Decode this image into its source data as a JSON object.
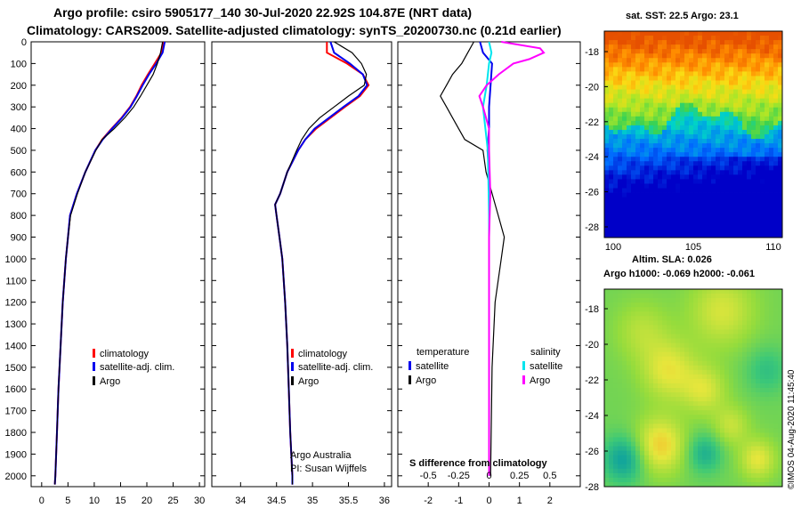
{
  "header": {
    "line1": "Argo profile: csiro 5905177_140 30-Jul-2020 22.92S 104.87E (NRT data)",
    "line2": "Climatology: CARS2009. Satellite-adjusted climatology: synTS_20200730.nc (0.21d earlier)"
  },
  "depth_axis": {
    "ticks": [
      0,
      100,
      200,
      300,
      400,
      500,
      600,
      700,
      800,
      900,
      1000,
      1100,
      1200,
      1300,
      1400,
      1500,
      1600,
      1700,
      1800,
      1900,
      2000
    ],
    "max": 2050
  },
  "credits": {
    "line1": "Argo Australia",
    "line2": "PI: Susan Wijffels"
  },
  "watermark": "©IMOS 04-Aug-2020 11:45:40",
  "legend": {
    "climatology": "climatology",
    "satellite_adj": "satellite-adj. clim.",
    "argo": "Argo",
    "temperature": "temperature",
    "salinity": "salinity",
    "satellite": "satellite"
  },
  "colors": {
    "climatology": "#ff0000",
    "satellite_adj": "#0000ee",
    "argo": "#000000",
    "salinity_sat": "#00e5ee",
    "salinity_argo": "#ff00ff"
  },
  "chart_data": [
    {
      "type": "line",
      "name": "temperature-profile",
      "xlabel": "",
      "ylabel": "depth",
      "xlim": [
        -2,
        31
      ],
      "ylim": [
        2050,
        0
      ],
      "xticks": [
        0,
        5,
        10,
        15,
        20,
        25,
        30
      ],
      "series": [
        {
          "name": "climatology",
          "depth": [
            0,
            50,
            100,
            150,
            200,
            250,
            300,
            350,
            400,
            450,
            500,
            600,
            700,
            800,
            900,
            1000,
            1200,
            1400,
            1600,
            1800,
            2000,
            2040
          ],
          "values": [
            23.1,
            22.8,
            21.5,
            20.2,
            19.0,
            18.0,
            16.8,
            15.2,
            13.3,
            11.5,
            10.2,
            8.3,
            6.7,
            5.4,
            5.0,
            4.6,
            4.0,
            3.6,
            3.2,
            2.9,
            2.6,
            2.5
          ]
        },
        {
          "name": "satellite-adj. clim.",
          "depth": [
            0,
            50,
            100,
            150,
            200,
            250,
            300,
            350,
            400,
            450,
            500,
            600,
            700,
            800,
            900,
            1000,
            1200,
            1400,
            1600,
            1800,
            2000,
            2040
          ],
          "values": [
            23.4,
            23.0,
            21.8,
            20.4,
            19.2,
            18.1,
            16.9,
            15.3,
            13.4,
            11.6,
            10.2,
            8.3,
            6.7,
            5.4,
            5.0,
            4.6,
            4.0,
            3.6,
            3.2,
            2.9,
            2.6,
            2.5
          ]
        },
        {
          "name": "Argo",
          "depth": [
            0,
            50,
            100,
            150,
            200,
            250,
            300,
            350,
            400,
            450,
            500,
            600,
            700,
            800,
            900,
            1000,
            1200,
            1400,
            1600,
            1800,
            2000,
            2040
          ],
          "values": [
            23.0,
            22.6,
            22.0,
            21.2,
            20.0,
            18.8,
            17.5,
            15.8,
            13.8,
            11.5,
            10.3,
            8.3,
            6.8,
            5.5,
            5.0,
            4.6,
            4.0,
            3.6,
            3.2,
            2.9,
            2.6,
            2.5
          ]
        }
      ]
    },
    {
      "type": "line",
      "name": "salinity-profile",
      "xlabel": "",
      "ylabel": "depth",
      "xlim": [
        33.6,
        36.1
      ],
      "ylim": [
        2050,
        0
      ],
      "xticks": [
        34,
        34.5,
        35,
        35.5,
        36
      ],
      "series": [
        {
          "name": "climatology",
          "depth": [
            0,
            50,
            100,
            150,
            200,
            250,
            300,
            350,
            400,
            450,
            500,
            600,
            700,
            750,
            800,
            900,
            1000,
            1200,
            1400,
            1600,
            1800,
            2000,
            2040
          ],
          "values": [
            35.2,
            35.2,
            35.48,
            35.7,
            35.78,
            35.66,
            35.45,
            35.25,
            35.05,
            34.9,
            34.8,
            34.65,
            34.55,
            34.48,
            34.5,
            34.54,
            34.58,
            34.62,
            34.65,
            34.67,
            34.69,
            34.72,
            34.72
          ]
        },
        {
          "name": "satellite-adj. clim.",
          "depth": [
            0,
            50,
            100,
            150,
            200,
            250,
            300,
            350,
            400,
            450,
            500,
            600,
            700,
            750,
            800,
            900,
            1000,
            1200,
            1400,
            1600,
            1800,
            2000,
            2040
          ],
          "values": [
            35.25,
            35.3,
            35.52,
            35.7,
            35.76,
            35.64,
            35.43,
            35.23,
            35.03,
            34.9,
            34.8,
            34.65,
            34.55,
            34.48,
            34.5,
            34.54,
            34.58,
            34.62,
            34.65,
            34.67,
            34.69,
            34.72,
            34.72
          ]
        },
        {
          "name": "Argo",
          "depth": [
            0,
            50,
            100,
            150,
            200,
            250,
            300,
            350,
            400,
            450,
            500,
            600,
            700,
            750,
            800,
            900,
            1000,
            1200,
            1400,
            1600,
            1800,
            2000,
            2040
          ],
          "values": [
            35.3,
            35.55,
            35.68,
            35.75,
            35.72,
            35.5,
            35.3,
            35.1,
            34.95,
            34.85,
            34.78,
            34.65,
            34.55,
            34.48,
            34.5,
            34.54,
            34.58,
            34.62,
            34.65,
            34.67,
            34.69,
            34.72,
            34.72
          ]
        }
      ]
    },
    {
      "type": "line",
      "name": "difference-from-climatology",
      "xlabel": "S difference from climatology",
      "ylim": [
        2050,
        0
      ],
      "xlim_temperature": [
        -3,
        3
      ],
      "top_ticks": [
        -2,
        -1,
        0,
        1,
        2
      ],
      "bottom_ticks": [
        "-0.5",
        "-0.25",
        "0",
        "0.25",
        "0.5"
      ],
      "series": [
        {
          "name": "temperature satellite",
          "depth": [
            0,
            50,
            100,
            200,
            300,
            400,
            500,
            600,
            800,
            1000,
            1500,
            2000
          ],
          "values": [
            -0.3,
            -0.2,
            0.1,
            0.05,
            0,
            0,
            -0.05,
            0,
            0,
            0,
            0,
            0
          ]
        },
        {
          "name": "temperature Argo",
          "depth": [
            0,
            50,
            100,
            150,
            200,
            250,
            300,
            350,
            400,
            450,
            500,
            600,
            800,
            900,
            1000,
            1200,
            1500,
            2000
          ],
          "values": [
            -0.5,
            -0.7,
            -0.9,
            -1.2,
            -1.4,
            -1.6,
            -1.4,
            -1.2,
            -1.0,
            -0.8,
            -0.2,
            -0.1,
            0.3,
            0.5,
            0.4,
            0.2,
            0.1,
            0.05
          ]
        },
        {
          "name": "salinity satellite",
          "depth": [
            0,
            50,
            100,
            200,
            300,
            400,
            500,
            800,
            1000,
            1500,
            2000
          ],
          "values": [
            0.0,
            0.02,
            0.0,
            -0.02,
            -0.05,
            -0.03,
            -0.01,
            0,
            0,
            0,
            0
          ]
        },
        {
          "name": "salinity Argo",
          "depth": [
            0,
            30,
            50,
            80,
            100,
            150,
            200,
            250,
            300,
            400,
            500,
            700,
            900,
            1000,
            1200,
            1500,
            2000
          ],
          "values": [
            0.1,
            0.42,
            0.45,
            0.33,
            0.2,
            0.08,
            -0.02,
            -0.08,
            -0.05,
            0,
            0,
            0.01,
            0.0,
            0.0,
            0.0,
            0.0,
            0.0
          ]
        }
      ]
    },
    {
      "type": "heatmap",
      "name": "sst-map",
      "title": "sat. SST: 22.5 Argo: 23.1",
      "x_ticks": [
        "100",
        "105",
        "110"
      ],
      "y_ticks": [
        "-18",
        "-20",
        "-22",
        "-24",
        "-26",
        "-28"
      ]
    },
    {
      "type": "heatmap",
      "name": "sla-map",
      "title_line1": "Altim. SLA: 0.026",
      "title_line2": "Argo h1000: -0.069 h2000: -0.061",
      "y_ticks": [
        "-18",
        "-20",
        "-22",
        "-24",
        "-26",
        "-28"
      ]
    }
  ]
}
